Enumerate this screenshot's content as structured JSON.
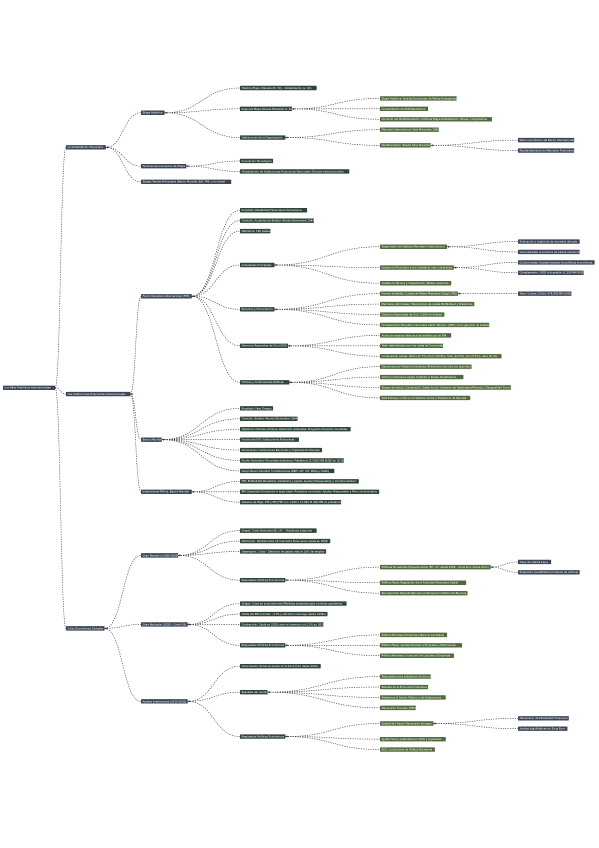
{
  "root": {
    "label": "Los Hitos Históricos Internacionales"
  },
  "branches": [
    {
      "label": "La Globalización Financiera",
      "children": [
        {
          "label": "Etapa Histórica",
          "children": [
            {
              "label": "Historia Etapa (Década 20, 30) – Globalización (s. XX)"
            },
            {
              "label": "Segunda Etapa (Desde Mediados S. XX)",
              "children": [
                {
                  "label": "Etapa Histórica: Nuevas Economías de Países Emergentes"
                },
                {
                  "label": "Consolidación de Multilateralismo"
                },
                {
                  "label": "Aumento del Multilateralismo: Políticas Etapa Globalización, Países y Organismos"
                }
              ]
            },
            {
              "label": "Definiciones de la Organización",
              "children": [
                {
                  "label": "Mercado Internacional: Abre Mercados 1990"
                },
                {
                  "label": "Neoliberalismo (Desde Años Noventa)",
                  "children": [
                    {
                      "label": "Marco económico del Banco Internacional"
                    },
                    {
                      "label": "Recalentamiento en Mercados Financieros"
                    }
                  ]
                }
              ]
            }
          ]
        },
        {
          "label": "Factores de Innovación de Etapa",
          "children": [
            {
              "label": "Innovación Tecnológica"
            },
            {
              "label": "Globalización de Instituciones Financieras Nacionales (Fondos Internacionales)"
            }
          ]
        },
        {
          "label": "Etapas Teorías Principales (Banco Mundial, BID, FMI, y en otras)"
        }
      ]
    },
    {
      "label": "Las Instituciones Financieras Internacionales",
      "children": [
        {
          "label": "Fondo Monetario Internacional (FMI)",
          "children": [
            {
              "label": "Propósito: Estabilidad Financiera Internacional"
            },
            {
              "label": "Creación: Acuerdos de Bretton Woods (Noviembre 1944)"
            },
            {
              "label": "Miembros: 190 países"
            },
            {
              "label": "Actividades Principales",
              "children": [
                {
                  "label": "Supervisión del Sistema Monetario Internacional",
                  "children": [
                    {
                      "label": "Evaluación y vigilancia de monedas del país"
                    },
                    {
                      "label": "Vulnerabilidad económica de países miembros"
                    }
                  ]
                },
                {
                  "label": "Asistencia Financiera a sus miembros más vulnerables",
                  "children": [
                    {
                      "label": "Condicionales: Ajustes basados en políticas económicas"
                    },
                    {
                      "label": "Complemento: 2002 a la gestión (1.300 MM $USD)"
                    }
                  ]
                },
                {
                  "label": "Asistencia Técnica y Capacitación (Países miembro)"
                }
              ]
            },
            {
              "label": "Recursos y Financiación",
              "children": [
                {
                  "label": "Fondos Variables: Cuotas de Países Miembros (Según PIB)",
                  "children": [
                    {
                      "label": "Total: Cuotas (2016): 476.000 MM $USD"
                    }
                  ]
                },
                {
                  "label": "Mercados Adicionales: Mecanismos de Ajuste Multilateral y Préstamos"
                },
                {
                  "label": "Derechos Especiales de Giro: 1.000 de dólares"
                },
                {
                  "label": "Complemento Monetario: Recursos Cierto Número (DEG) como garantía de préstamos"
                }
              ]
            },
            {
              "label": "Derechos Especiales de Giro (DEG)",
              "children": [
                {
                  "label": "Activo de reserva internacional emitido por el FMI"
                },
                {
                  "label": "Valor determinado por una cesta de 5 monedas"
                },
                {
                  "label": "Composición actual: Dólar (41.7%), Euro (30.9%), Yuan (10.9%), Yen (8.3%), Libra (8.1%)"
                }
              ]
            },
            {
              "label": "Críticas y Controversias Políticas",
              "children": [
                {
                  "label": "Decisiones por Países Dominantes (Predominio de voto por grandes)"
                },
                {
                  "label": "Critica condiciones Ajuste recibidos a Países beneficiarios"
                },
                {
                  "label": "Riesgo de reducir Crecimiento, Gasto Social, Aumento de Desempleo/Pobreza y Desigualdad Social"
                },
                {
                  "label": "Este Enfoque: Crisis en el Sistema Social y Préstamos de Rescate"
                }
              ]
            }
          ]
        },
        {
          "label": "Banco Mundial",
          "children": [
            {
              "label": "Propósito: Fase Tiempo"
            },
            {
              "label": "Creación: Bretton Woods (Noviembre 1944)"
            },
            {
              "label": "Objetivos: Pobreza extrema, Desarrollo sostenible, Proyectos donación mundiales"
            },
            {
              "label": "Fondos del IDA: Instituciones Financieras"
            },
            {
              "label": "Donaciones: Instituciones Bancarias y Organización Mundial"
            },
            {
              "label": "Acción financiera: Por países miembros: Préstamos (27.000 MM $USD en 2018)"
            },
            {
              "label": "Grupo Banco Mundial: 5 Instituciones (BIRF, AIF, CFI, MIGA y CIADI)"
            }
          ]
        },
        {
          "label": "Instituciones FMI vs. Banco Mundial",
          "children": [
            {
              "label": "FMI: Estabilidad Monetaria, Cambiaria y Ajuste; Ayudan Presupuestos y Condicionalidad"
            },
            {
              "label": "BM: Desarrollo Económico a largo plazo; Proyectos concretos; Ayudan Presupuesto y Plan condicionados"
            },
            {
              "label": "Sistema de Pago: FMI y BM (FMI con 1.200 o 27.000 M USD BM en préstamos)"
            }
          ]
        }
      ]
    },
    {
      "label": "Crisis Económicas Globales",
      "children": [
        {
          "label": "Gran Recesión (2008-2009)",
          "children": [
            {
              "label": "Origen: Crisis financiera EE. UU. – Hipotecas subprime"
            },
            {
              "label": "Afectación: Pérdida entre 20 mercados financieros, Caída en 2008"
            },
            {
              "label": "Desempleo: Crisis – Deterioro de países más el 10% del empleo"
            },
            {
              "label": "Respuestas Políticas Económicas",
              "children": [
                {
                  "label": "Políticas Monetarias Expansionarias (EE. UU. desde 2008 – Zona Euro desde 2011)",
                  "children": [
                    {
                      "label": "Tipos de interés bajos"
                    },
                    {
                      "label": "Expansión Cuantitativa (Compras de activos)"
                    }
                  ]
                },
                {
                  "label": "Política Fiscal: Regulación de la Actividad Financiera Global"
                },
                {
                  "label": "Recuperación Rescate Bancario (Intervención Pública de Bancos)"
                }
              ]
            }
          ]
        },
        {
          "label": "Gran Reclusión (2020 – Covid-19)",
          "children": [
            {
              "label": "Origen: Crisis en economía real (Medidas sanitarias para controlar pandemia)"
            },
            {
              "label": "Caída del PIB mundial: –3.3% (cuál ritmo más bajo desde 1930s)"
            },
            {
              "label": "Contracción: Caída en 2020 como el comercio un 5.3% en 2020"
            },
            {
              "label": "Respuestas Políticas Económicas",
              "children": [
                {
                  "label": "Política Monetaria Expansiva (Bancos Centrales)"
                },
                {
                  "label": "Política Fiscal: Ayudas Directas a Empresas y Particulares"
                },
                {
                  "label": "Política Monetaria: Inyección de Liquidez a Empresas"
                }
              ]
            }
          ]
        },
        {
          "label": "Ayudas Instituciones (2010-2020)",
          "children": [
            {
              "label": "Crisis Deuda (Crisis de deuda en la Zona Euro desde 2010)"
            },
            {
              "label": "Rescates del mundo",
              "children": [
                {
                  "label": "Respuestas para préstamos de bancos"
                },
                {
                  "label": "Rescate de la Economía Productiva"
                },
                {
                  "label": "Préstamos al Sector Público y de Instituciones"
                },
                {
                  "label": "Mecanismo Europeo (MEDE)"
                }
              ]
            },
            {
              "label": "Respuestas Políticas Económicas",
              "children": [
                {
                  "label": "Estabilidad Fiscal: Mecanismo Europeo",
                  "children": [
                    {
                      "label": "Mecanismo de Estabilidad Financiera"
                    },
                    {
                      "label": "Ayudas significativas en Zona Euro"
                    }
                  ]
                },
                {
                  "label": "Ajuste Fiscal: Austeridad en 2010 y siguientes"
                },
                {
                  "label": "BCE: Condiciones de Política Monetaria"
                }
              ]
            }
          ]
        }
      ]
    }
  ]
}
